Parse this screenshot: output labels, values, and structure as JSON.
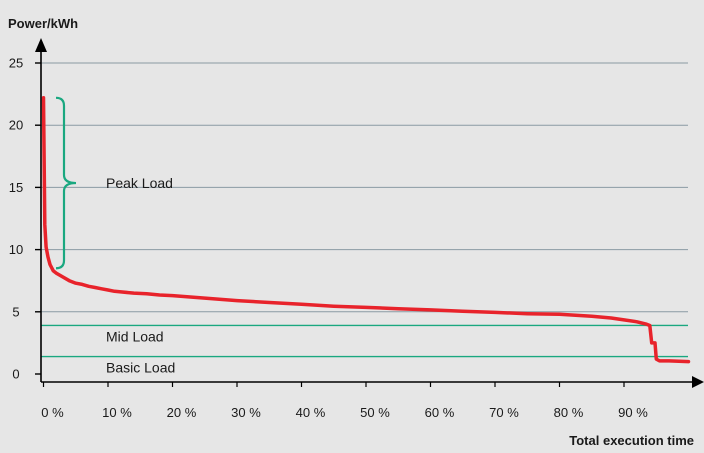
{
  "chart_data": {
    "type": "line",
    "ylabel": "Power/kWh",
    "xlabel": "Total execution time",
    "xlim": [
      0,
      100
    ],
    "ylim": [
      0,
      25
    ],
    "y_ticks": [
      "0",
      "5",
      "10",
      "15",
      "20",
      "25"
    ],
    "x_ticks": [
      "0 %",
      "10 %",
      "20 %",
      "30 %",
      "40 %",
      "50 %",
      "60 %",
      "70 %",
      "80 %",
      "90 %"
    ],
    "grid": true,
    "series": [
      {
        "color": "#e8232b",
        "x": [
          0,
          0.2,
          0.4,
          0.7,
          1,
          1.5,
          2,
          3,
          4,
          5,
          6,
          7,
          8,
          9,
          10,
          11,
          12,
          14,
          16,
          18,
          20,
          25,
          30,
          35,
          40,
          45,
          50,
          55,
          60,
          65,
          70,
          75,
          80,
          85,
          88,
          90,
          92,
          93.5,
          94,
          94.3,
          94.8,
          95,
          95.5,
          97,
          100
        ],
        "y": [
          22.2,
          12,
          10.2,
          9.4,
          8.8,
          8.3,
          8.1,
          7.8,
          7.5,
          7.3,
          7.2,
          7.05,
          6.95,
          6.85,
          6.75,
          6.65,
          6.6,
          6.5,
          6.45,
          6.35,
          6.3,
          6.1,
          5.9,
          5.75,
          5.6,
          5.45,
          5.35,
          5.25,
          5.15,
          5.05,
          4.95,
          4.85,
          4.8,
          4.65,
          4.5,
          4.35,
          4.2,
          4.0,
          3.9,
          2.5,
          2.5,
          1.2,
          1.05,
          1.05,
          1.0
        ]
      }
    ],
    "reference_lines": [
      {
        "label": "Mid Load",
        "y": 3.9,
        "color": "#1aa880"
      },
      {
        "label": "Basic Load",
        "y": 1.4,
        "color": "#1aa880"
      }
    ],
    "brace": {
      "label": "Peak Load",
      "y_range": [
        8.5,
        22.2
      ],
      "x_position": 1.5,
      "color": "#1aa880"
    }
  }
}
